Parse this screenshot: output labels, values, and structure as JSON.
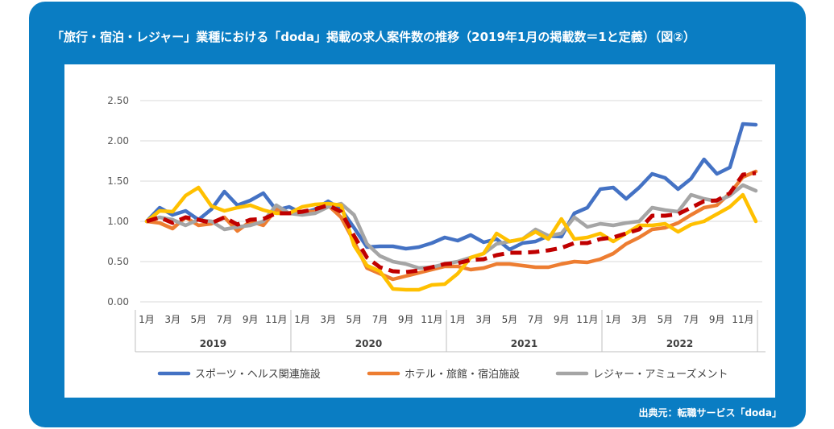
{
  "title": "「旅行・宿泊・レジャー」業種における「doda」掲載の求人案件数の推移（2019年1月の掲載数＝1と定義）（図②）",
  "source": "出典元：転職サービス「doda」",
  "chart_data": {
    "type": "line",
    "ylim": [
      0,
      2.5
    ],
    "yticks": [
      "0.00",
      "0.50",
      "1.00",
      "1.50",
      "2.00",
      "2.50"
    ],
    "grid": true,
    "legend_position": "bottom",
    "month_labels": [
      "1月",
      "3月",
      "5月",
      "7月",
      "9月",
      "11月",
      "1月",
      "3月",
      "5月",
      "7月",
      "9月",
      "11月",
      "1月",
      "3月",
      "5月",
      "7月",
      "9月",
      "11月",
      "1月",
      "3月",
      "5月",
      "7月",
      "9月",
      "11月"
    ],
    "years": [
      "2019",
      "2020",
      "2021",
      "2022"
    ],
    "series": [
      {
        "name": "スポーツ・ヘルス関連施設",
        "color": "#4472c4",
        "dashed": false,
        "values": [
          1.0,
          1.17,
          1.08,
          1.13,
          1.02,
          1.15,
          1.37,
          1.2,
          1.26,
          1.35,
          1.14,
          1.18,
          1.1,
          1.15,
          1.25,
          1.15,
          0.92,
          0.68,
          0.69,
          0.69,
          0.66,
          0.68,
          0.73,
          0.8,
          0.76,
          0.83,
          0.74,
          0.78,
          0.65,
          0.73,
          0.75,
          0.82,
          0.81,
          1.1,
          1.17,
          1.4,
          1.42,
          1.28,
          1.42,
          1.59,
          1.54,
          1.4,
          1.53,
          1.77,
          1.59,
          1.67,
          2.21,
          2.2
        ]
      },
      {
        "name": "ホテル・旅館・宿泊施設",
        "color": "#ed7d31",
        "dashed": false,
        "values": [
          1.0,
          0.98,
          0.91,
          1.05,
          0.95,
          0.97,
          1.05,
          0.88,
          1.0,
          0.95,
          1.15,
          1.1,
          1.12,
          1.12,
          1.2,
          1.05,
          0.75,
          0.42,
          0.35,
          0.28,
          0.32,
          0.36,
          0.4,
          0.44,
          0.44,
          0.4,
          0.42,
          0.47,
          0.47,
          0.45,
          0.43,
          0.43,
          0.47,
          0.5,
          0.49,
          0.53,
          0.6,
          0.72,
          0.8,
          0.9,
          0.92,
          0.98,
          1.08,
          1.17,
          1.2,
          1.35,
          1.55,
          1.62
        ]
      },
      {
        "name": "レジャー・アミューズメント",
        "color": "#a5a5a5",
        "dashed": false,
        "values": [
          1.0,
          1.05,
          1.02,
          0.95,
          1.02,
          1.0,
          0.9,
          0.93,
          0.95,
          1.0,
          1.2,
          1.1,
          1.08,
          1.1,
          1.18,
          1.22,
          1.08,
          0.72,
          0.57,
          0.5,
          0.47,
          0.42,
          0.43,
          0.47,
          0.5,
          0.55,
          0.6,
          0.72,
          0.75,
          0.78,
          0.9,
          0.82,
          0.85,
          1.05,
          0.93,
          0.97,
          0.95,
          0.98,
          1.0,
          1.17,
          1.14,
          1.12,
          1.33,
          1.28,
          1.25,
          1.32,
          1.45,
          1.38
        ]
      },
      {
        "name": "",
        "color": "#ffc000",
        "dashed": false,
        "values": [
          1.0,
          1.13,
          1.12,
          1.32,
          1.42,
          1.19,
          1.13,
          1.17,
          1.2,
          1.14,
          1.1,
          1.1,
          1.18,
          1.21,
          1.22,
          1.2,
          0.7,
          0.45,
          0.38,
          0.16,
          0.15,
          0.15,
          0.21,
          0.22,
          0.35,
          0.55,
          0.6,
          0.85,
          0.75,
          0.78,
          0.87,
          0.78,
          1.03,
          0.78,
          0.8,
          0.85,
          0.75,
          0.85,
          0.95,
          0.95,
          0.97,
          0.87,
          0.96,
          1.0,
          1.09,
          1.18,
          1.33,
          1.0
        ]
      },
      {
        "name": "",
        "color": "#c00000",
        "dashed": true,
        "values": [
          1.0,
          1.05,
          0.98,
          1.05,
          1.02,
          0.98,
          1.05,
          0.96,
          1.02,
          1.03,
          1.1,
          1.1,
          1.12,
          1.15,
          1.2,
          1.12,
          0.82,
          0.55,
          0.43,
          0.38,
          0.37,
          0.39,
          0.43,
          0.47,
          0.48,
          0.52,
          0.53,
          0.58,
          0.61,
          0.61,
          0.62,
          0.64,
          0.67,
          0.73,
          0.73,
          0.78,
          0.8,
          0.85,
          0.9,
          1.07,
          1.07,
          1.09,
          1.17,
          1.25,
          1.26,
          1.35,
          1.58,
          1.6
        ]
      }
    ]
  }
}
